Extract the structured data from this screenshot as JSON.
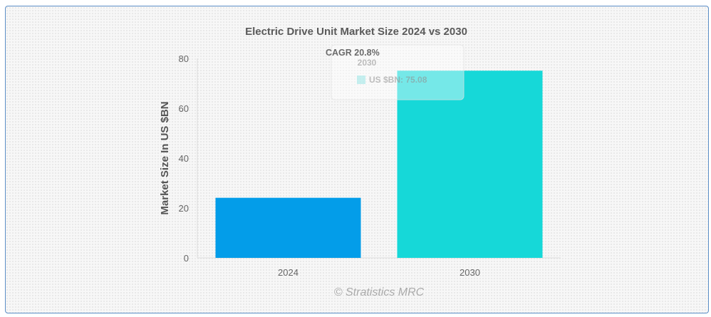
{
  "chart_data": {
    "type": "bar",
    "title": "Electric Drive Unit Market Size 2024 vs 2030",
    "categories": [
      "2024",
      "2030"
    ],
    "values": [
      24.1,
      75.08
    ],
    "colors": [
      "#039de9",
      "#16d8d8"
    ],
    "ylabel": "Market Size In US $BN",
    "ylim": [
      0,
      80
    ],
    "yticks": [
      "0",
      "20",
      "40",
      "60",
      "80"
    ],
    "grid": false,
    "annotation": "CAGR 20.8%",
    "tooltip": {
      "title": "2030",
      "label": "US $BN: 75.08"
    },
    "watermark": "© Stratistics MRC"
  }
}
